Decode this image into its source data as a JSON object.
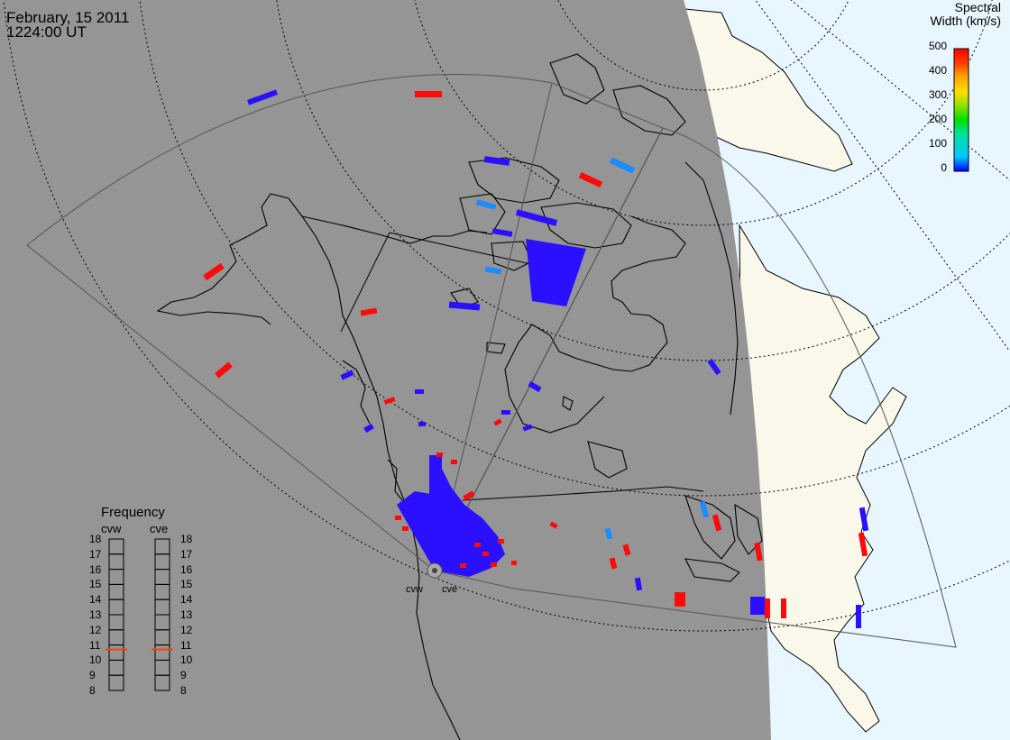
{
  "title": {
    "date": "February, 15 2011",
    "time": "1224:00 UT"
  },
  "colorbar": {
    "title_line1": "Spectral",
    "title_line2": "Width (km/s)",
    "ticks": [
      "500",
      "400",
      "300",
      "200",
      "100",
      "0"
    ],
    "colors": [
      "#0000ff",
      "#00c8ff",
      "#00e0a0",
      "#00e000",
      "#a0e000",
      "#ffe000",
      "#ffa000",
      "#ff4000",
      "#ff0000"
    ]
  },
  "frequency_panel": {
    "title": "Frequency",
    "radars": [
      {
        "name": "cvw",
        "current_mhz": 10.7
      },
      {
        "name": "cve",
        "current_mhz": 10.7
      }
    ],
    "ticks": [
      "18",
      "17",
      "16",
      "15",
      "14",
      "13",
      "12",
      "11",
      "10",
      "9",
      "8"
    ],
    "marker_color": "#ff4400"
  },
  "radar_labels": [
    "cvw",
    "cve"
  ],
  "colors": {
    "night": "#959595",
    "day_land": "#faf8ea",
    "day_ocean": "#e8f6ff",
    "low_width": "#2a10ff",
    "mid_width": "#1c8cff",
    "high_width": "#ff0a0a"
  }
}
